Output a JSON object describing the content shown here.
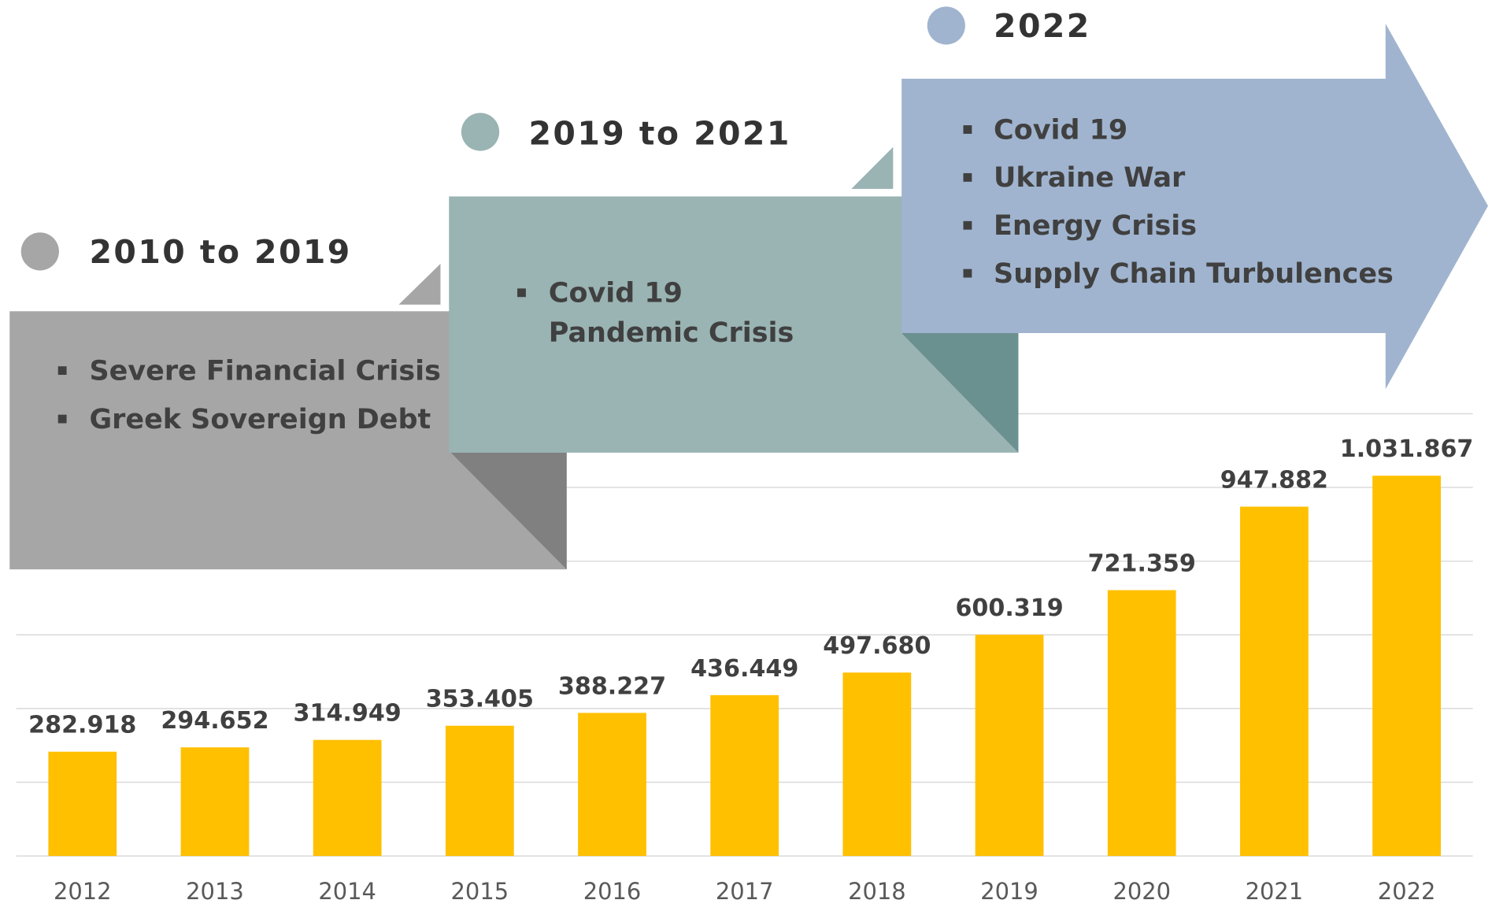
{
  "chart_data": {
    "type": "bar",
    "categories": [
      "2012",
      "2013",
      "2014",
      "2015",
      "2016",
      "2017",
      "2018",
      "2019",
      "2020",
      "2021",
      "2022"
    ],
    "values": [
      282918,
      294652,
      314949,
      353405,
      388227,
      436449,
      497680,
      600319,
      721359,
      947882,
      1031867
    ],
    "value_labels": [
      "282.918",
      "294.652",
      "314.949",
      "353.405",
      "388.227",
      "436.449",
      "497.680",
      "600.319",
      "721.359",
      "947.882",
      "1.031.867"
    ],
    "color": "#ffc000",
    "ylim": [
      0,
      1200000
    ],
    "yticks": [
      0,
      200000,
      400000,
      600000,
      800000,
      1000000,
      1200000
    ],
    "grid": true
  },
  "timeline": [
    {
      "label": "2010 to 2019",
      "items": [
        [
          "Severe Financial Crisis"
        ],
        [
          "Greek Sovereign Debt"
        ]
      ]
    },
    {
      "label": "2019 to 2021",
      "items": [
        [
          "Covid 19",
          "Pandemic Crisis"
        ]
      ]
    },
    {
      "label": "2022",
      "items": [
        [
          "Covid 19"
        ],
        [
          "Ukraine War"
        ],
        [
          "Energy Crisis"
        ],
        [
          "Supply Chain Turbulences"
        ]
      ]
    }
  ]
}
